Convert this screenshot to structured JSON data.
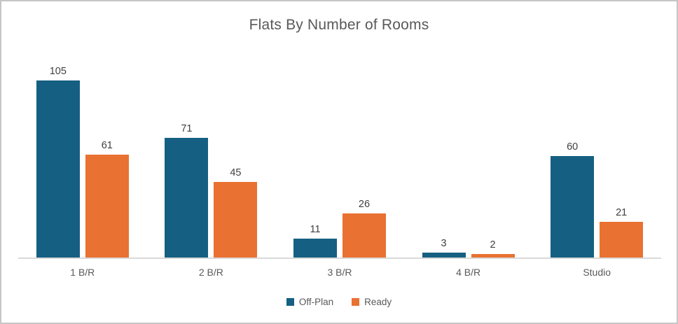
{
  "chart_data": {
    "type": "bar",
    "title": "Flats By Number of Rooms",
    "categories": [
      "1 B/R",
      "2 B/R",
      "3 B/R",
      "4 B/R",
      "Studio"
    ],
    "series": [
      {
        "name": "Off-Plan",
        "color": "#156082",
        "values": [
          105,
          71,
          11,
          3,
          60
        ]
      },
      {
        "name": "Ready",
        "color": "#E97132",
        "values": [
          61,
          45,
          26,
          2,
          21
        ]
      }
    ],
    "xlabel": "",
    "ylabel": "",
    "ylim": [
      0,
      122
    ],
    "grid": false,
    "legend_position": "bottom",
    "data_labels": true,
    "colors": {
      "title_text": "#595959",
      "value_label_text": "#404040",
      "category_text": "#595959",
      "axis_line": "#d9d9d9",
      "frame_border": "#c6c6c6",
      "background": "#ffffff"
    }
  }
}
